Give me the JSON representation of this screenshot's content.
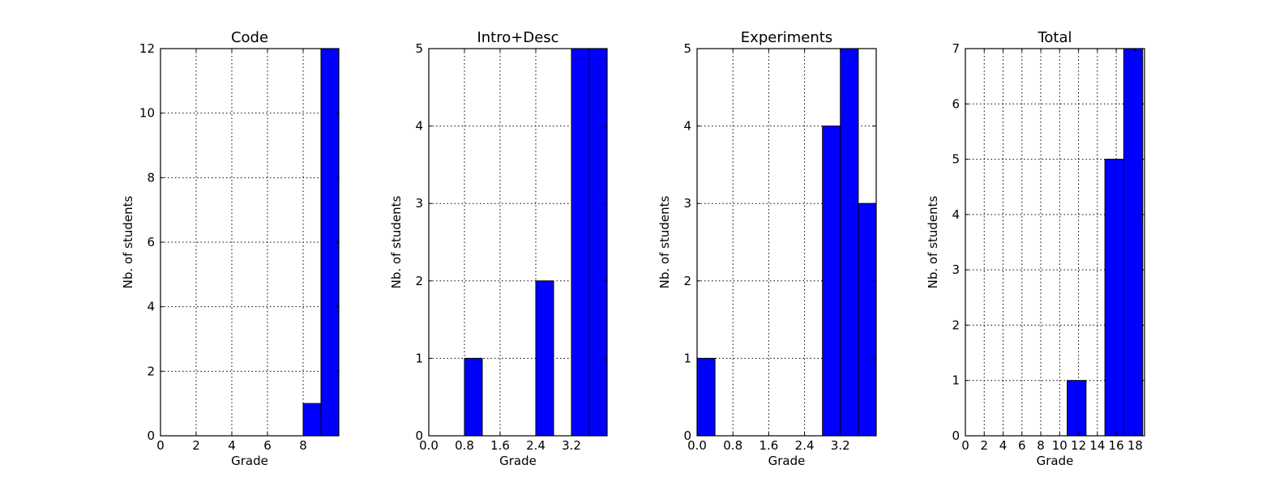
{
  "chart_data": [
    {
      "type": "bar",
      "title": "Code",
      "xlabel": "Grade",
      "ylabel": "Nb. of students",
      "xlim": [
        0,
        10
      ],
      "ylim": [
        0,
        12
      ],
      "xticks": [
        "0",
        "2",
        "4",
        "6",
        "8"
      ],
      "yticks": [
        "0",
        "2",
        "4",
        "6",
        "8",
        "10",
        "12"
      ],
      "grid": true,
      "bars": [
        {
          "x0": 8,
          "x1": 9,
          "value": 1
        },
        {
          "x0": 9,
          "x1": 10,
          "value": 12
        }
      ]
    },
    {
      "type": "bar",
      "title": "Intro+Desc",
      "xlabel": "Grade",
      "ylabel": "Nb. of students",
      "xlim": [
        0,
        4
      ],
      "ylim": [
        0,
        5
      ],
      "xticks": [
        "0.0",
        "0.8",
        "1.6",
        "2.4",
        "3.2"
      ],
      "yticks": [
        "0",
        "1",
        "2",
        "3",
        "4",
        "5"
      ],
      "grid": true,
      "bars": [
        {
          "x0": 0.8,
          "x1": 1.2,
          "value": 1
        },
        {
          "x0": 2.4,
          "x1": 2.8,
          "value": 2
        },
        {
          "x0": 3.2,
          "x1": 3.6,
          "value": 5
        },
        {
          "x0": 3.6,
          "x1": 4.0,
          "value": 5
        }
      ]
    },
    {
      "type": "bar",
      "title": "Experiments",
      "xlabel": "Grade",
      "ylabel": "Nb. of students",
      "xlim": [
        0,
        4
      ],
      "ylim": [
        0,
        5
      ],
      "xticks": [
        "0.0",
        "0.8",
        "1.6",
        "2.4",
        "3.2"
      ],
      "yticks": [
        "0",
        "1",
        "2",
        "3",
        "4",
        "5"
      ],
      "grid": true,
      "bars": [
        {
          "x0": 0.0,
          "x1": 0.4,
          "value": 1
        },
        {
          "x0": 2.8,
          "x1": 3.2,
          "value": 4
        },
        {
          "x0": 3.2,
          "x1": 3.6,
          "value": 5
        },
        {
          "x0": 3.6,
          "x1": 4.0,
          "value": 3
        }
      ]
    },
    {
      "type": "bar",
      "title": "Total",
      "xlabel": "Grade",
      "ylabel": "Nb. of students",
      "xlim": [
        0,
        19
      ],
      "ylim": [
        0,
        7
      ],
      "xticks": [
        "0",
        "2",
        "4",
        "6",
        "8",
        "10",
        "12",
        "14",
        "16",
        "18"
      ],
      "yticks": [
        "0",
        "1",
        "2",
        "3",
        "4",
        "5",
        "6",
        "7"
      ],
      "grid": true,
      "bars": [
        {
          "x0": 10.8,
          "x1": 12.8,
          "value": 1
        },
        {
          "x0": 14.8,
          "x1": 16.8,
          "value": 5
        },
        {
          "x0": 16.8,
          "x1": 18.8,
          "value": 7
        }
      ]
    }
  ],
  "colors": {
    "bar_fill": "#0000ff",
    "bar_edge": "#000000",
    "axes": "#000000",
    "grid": "#000000",
    "background": "#ffffff"
  }
}
